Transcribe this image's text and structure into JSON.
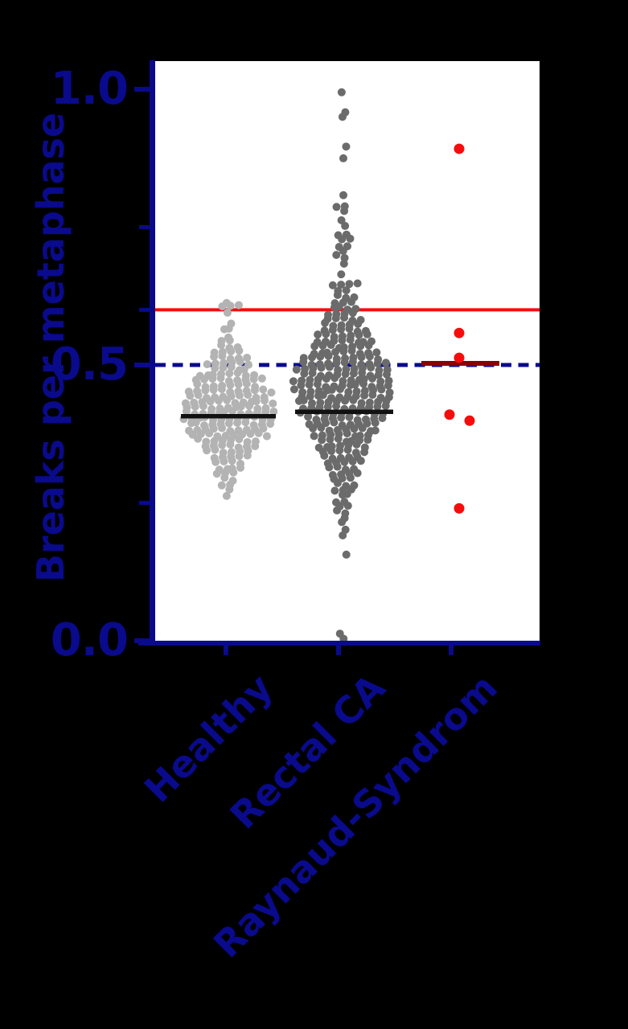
{
  "figure": {
    "background_color": "#000000",
    "plot_background_color": "#ffffff",
    "axis_color": "#0a0a8c",
    "text_color": "#0a0a8c"
  },
  "chart_data": {
    "type": "scatter",
    "subtype": "column-beeswarm",
    "title": "",
    "xlabel": "",
    "ylabel": "Breaks per metaphase",
    "ylim": [
      0.0,
      1.0
    ],
    "grid": false,
    "legend": false,
    "y_ticks": [
      {
        "value": 1.0,
        "label": "1.0"
      },
      {
        "value": 0.5,
        "label": "0.5"
      },
      {
        "value": 0.0,
        "label": "0.0"
      }
    ],
    "y_minor_ticks": [
      0.75,
      0.6,
      0.25
    ],
    "categories": [
      "Healthy",
      "Rectal CA",
      "Raynaud-Syndrom"
    ],
    "reference_lines": [
      {
        "name": "upper-threshold",
        "value": 0.6,
        "style": "solid",
        "color": "#f50d0d"
      },
      {
        "name": "mid-threshold",
        "value": 0.5,
        "style": "dashed",
        "color": "#0a0a8c"
      }
    ],
    "group_center_lines": [
      {
        "group": "Healthy",
        "value": 0.407,
        "color": "#111111"
      },
      {
        "group": "Rectal CA",
        "value": 0.415,
        "color": "#111111"
      },
      {
        "group": "Raynaud-Syndrom",
        "value": 0.503,
        "color": "#8b0000"
      }
    ],
    "series": [
      {
        "name": "Healthy",
        "dot_color": "#b3b3b3",
        "dot_radius": 5,
        "value_rows": [
          [
            0.615,
            1
          ],
          [
            0.606,
            3
          ],
          [
            0.592,
            1
          ],
          [
            0.576,
            1
          ],
          [
            0.563,
            2
          ],
          [
            0.552,
            1
          ],
          [
            0.543,
            2
          ],
          [
            0.533,
            3
          ],
          [
            0.523,
            4
          ],
          [
            0.513,
            5
          ],
          [
            0.503,
            6
          ],
          [
            0.493,
            5
          ],
          [
            0.483,
            8
          ],
          [
            0.473,
            9
          ],
          [
            0.463,
            8
          ],
          [
            0.453,
            11
          ],
          [
            0.443,
            10
          ],
          [
            0.433,
            12
          ],
          [
            0.423,
            11
          ],
          [
            0.413,
            12
          ],
          [
            0.403,
            12
          ],
          [
            0.393,
            11
          ],
          [
            0.383,
            10
          ],
          [
            0.373,
            10
          ],
          [
            0.363,
            8
          ],
          [
            0.353,
            7
          ],
          [
            0.343,
            6
          ],
          [
            0.333,
            5
          ],
          [
            0.323,
            4
          ],
          [
            0.313,
            4
          ],
          [
            0.303,
            3
          ],
          [
            0.293,
            2
          ],
          [
            0.283,
            2
          ],
          [
            0.273,
            1
          ],
          [
            0.265,
            1
          ]
        ]
      },
      {
        "name": "Rectal CA",
        "dot_color": "#6b6b6b",
        "dot_radius": 5,
        "value_rows": [
          [
            0.997,
            1
          ],
          [
            0.958,
            1
          ],
          [
            0.947,
            1
          ],
          [
            0.897,
            1
          ],
          [
            0.873,
            1
          ],
          [
            0.81,
            1
          ],
          [
            0.786,
            2
          ],
          [
            0.776,
            1
          ],
          [
            0.763,
            1
          ],
          [
            0.75,
            1
          ],
          [
            0.737,
            2
          ],
          [
            0.727,
            2
          ],
          [
            0.717,
            2
          ],
          [
            0.707,
            1
          ],
          [
            0.697,
            2
          ],
          [
            0.685,
            1
          ],
          [
            0.663,
            1
          ],
          [
            0.647,
            4
          ],
          [
            0.634,
            2
          ],
          [
            0.624,
            3
          ],
          [
            0.613,
            3
          ],
          [
            0.603,
            4
          ],
          [
            0.593,
            4
          ],
          [
            0.583,
            5
          ],
          [
            0.573,
            5
          ],
          [
            0.563,
            6
          ],
          [
            0.553,
            7
          ],
          [
            0.543,
            8
          ],
          [
            0.533,
            8
          ],
          [
            0.523,
            9
          ],
          [
            0.513,
            10
          ],
          [
            0.503,
            11
          ],
          [
            0.493,
            12
          ],
          [
            0.483,
            11
          ],
          [
            0.473,
            13
          ],
          [
            0.463,
            12
          ],
          [
            0.453,
            13
          ],
          [
            0.443,
            12
          ],
          [
            0.433,
            12
          ],
          [
            0.423,
            11
          ],
          [
            0.413,
            11
          ],
          [
            0.403,
            10
          ],
          [
            0.393,
            9
          ],
          [
            0.383,
            9
          ],
          [
            0.373,
            8
          ],
          [
            0.363,
            7
          ],
          [
            0.353,
            7
          ],
          [
            0.343,
            6
          ],
          [
            0.333,
            5
          ],
          [
            0.323,
            5
          ],
          [
            0.313,
            4
          ],
          [
            0.303,
            4
          ],
          [
            0.293,
            3
          ],
          [
            0.283,
            3
          ],
          [
            0.273,
            3
          ],
          [
            0.263,
            2
          ],
          [
            0.253,
            2
          ],
          [
            0.243,
            2
          ],
          [
            0.233,
            2
          ],
          [
            0.223,
            1
          ],
          [
            0.213,
            1
          ],
          [
            0.203,
            1
          ],
          [
            0.19,
            1
          ],
          [
            0.159,
            1
          ],
          [
            0.013,
            1
          ],
          [
            0.001,
            1
          ]
        ]
      },
      {
        "name": "Raynaud-Syndrom",
        "dot_color": "#f50d0d",
        "dot_radius": 6.5,
        "points": [
          {
            "dx": 0,
            "value": 0.892
          },
          {
            "dx": 0,
            "value": 0.558
          },
          {
            "dx": 0,
            "value": 0.513
          },
          {
            "dx": -12,
            "value": 0.41
          },
          {
            "dx": 13,
            "value": 0.399
          },
          {
            "dx": 0,
            "value": 0.24
          }
        ]
      }
    ]
  }
}
